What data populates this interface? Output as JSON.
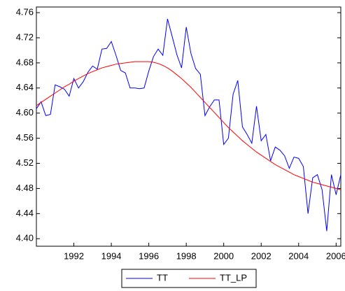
{
  "chart_data": {
    "type": "line",
    "x": [
      1990,
      1990.25,
      1990.5,
      1990.75,
      1991,
      1991.25,
      1991.5,
      1991.75,
      1992,
      1992.25,
      1992.5,
      1992.75,
      1993,
      1993.25,
      1993.5,
      1993.75,
      1994,
      1994.25,
      1994.5,
      1994.75,
      1995,
      1995.25,
      1995.5,
      1995.75,
      1996,
      1996.25,
      1996.5,
      1996.75,
      1997,
      1997.25,
      1997.5,
      1997.75,
      1998,
      1998.25,
      1998.5,
      1998.75,
      1999,
      1999.25,
      1999.5,
      1999.75,
      2000,
      2000.25,
      2000.5,
      2000.75,
      2001,
      2001.25,
      2001.5,
      2001.75,
      2002,
      2002.25,
      2002.5,
      2002.75,
      2003,
      2003.25,
      2003.5,
      2003.75,
      2004,
      2004.25,
      2004.5,
      2004.75,
      2005,
      2005.25,
      2005.5,
      2005.75,
      2006,
      2006.25
    ],
    "series": [
      {
        "name": "TT",
        "color": "#0000ff",
        "values": [
          4.607,
          4.618,
          4.596,
          4.598,
          4.645,
          4.642,
          4.638,
          4.627,
          4.655,
          4.64,
          4.65,
          4.665,
          4.675,
          4.67,
          4.702,
          4.703,
          4.714,
          4.692,
          4.668,
          4.664,
          4.64,
          4.64,
          4.639,
          4.64,
          4.667,
          4.69,
          4.702,
          4.692,
          4.75,
          4.722,
          4.693,
          4.672,
          4.737,
          4.695,
          4.671,
          4.662,
          4.596,
          4.61,
          4.621,
          4.621,
          4.55,
          4.56,
          4.63,
          4.652,
          4.578,
          4.566,
          4.552,
          4.611,
          4.556,
          4.566,
          4.524,
          4.546,
          4.541,
          4.532,
          4.512,
          4.53,
          4.528,
          4.515,
          4.44,
          4.497,
          4.502,
          4.478,
          4.412,
          4.502,
          4.47,
          4.502
        ]
      },
      {
        "name": "TT_LP",
        "color": "#ff0000",
        "values": [
          4.612,
          4.617,
          4.622,
          4.627,
          4.632,
          4.637,
          4.642,
          4.646,
          4.651,
          4.655,
          4.659,
          4.663,
          4.666,
          4.669,
          4.672,
          4.674,
          4.676,
          4.678,
          4.679,
          4.68,
          4.681,
          4.682,
          4.682,
          4.682,
          4.682,
          4.681,
          4.679,
          4.676,
          4.672,
          4.667,
          4.661,
          4.655,
          4.648,
          4.641,
          4.633,
          4.625,
          4.617,
          4.609,
          4.601,
          4.593,
          4.585,
          4.577,
          4.57,
          4.563,
          4.556,
          4.55,
          4.544,
          4.538,
          4.533,
          4.528,
          4.523,
          4.518,
          4.514,
          4.51,
          4.506,
          4.502,
          4.499,
          4.496,
          4.493,
          4.49,
          4.488,
          4.486,
          4.484,
          4.482,
          4.48,
          4.478
        ]
      }
    ],
    "xlim": [
      1990,
      2006.25
    ],
    "xticks": [
      1992,
      1994,
      1996,
      1998,
      2000,
      2002,
      2004,
      2006
    ],
    "ylim": [
      4.388,
      4.769
    ],
    "yticks": [
      {
        "value": 4.4,
        "label": "4.40"
      },
      {
        "value": 4.44,
        "label": "4.44"
      },
      {
        "value": 4.48,
        "label": "4.48"
      },
      {
        "value": 4.52,
        "label": "4.52"
      },
      {
        "value": 4.56,
        "label": "4.56"
      },
      {
        "value": 4.6,
        "label": "4.60"
      },
      {
        "value": 4.64,
        "label": "4.64"
      },
      {
        "value": 4.68,
        "label": "4.68"
      },
      {
        "value": 4.72,
        "label": "4.72"
      },
      {
        "value": 4.76,
        "label": "4.76"
      }
    ],
    "legend": "bottom"
  }
}
